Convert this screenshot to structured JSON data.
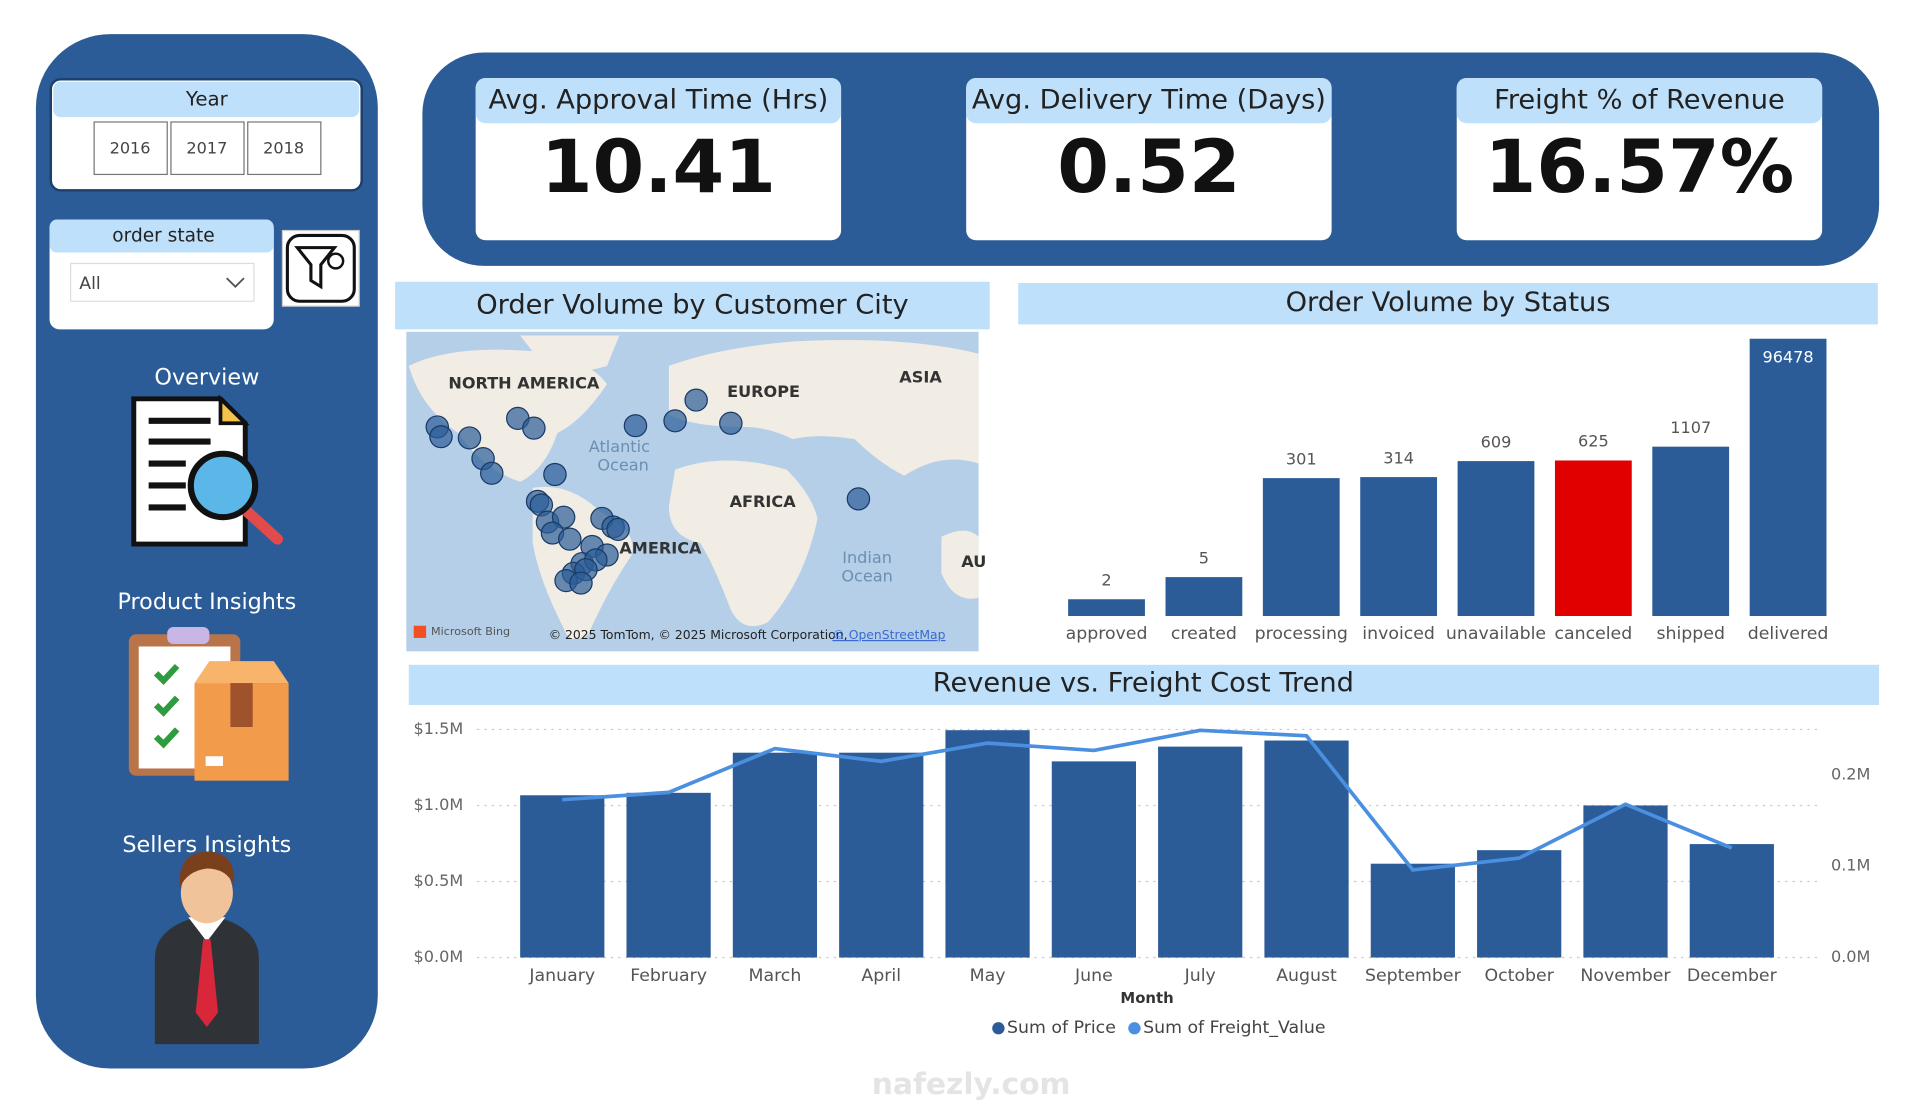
{
  "sidebar": {
    "year_slicer": {
      "title": "Year",
      "options": [
        "2016",
        "2017",
        "2018"
      ]
    },
    "state_slicer": {
      "title": "order state",
      "selected": "All"
    },
    "nav": [
      "Overview",
      "Product Insights",
      "Sellers Insights"
    ]
  },
  "kpis": [
    {
      "title": "Avg. Approval Time (Hrs)",
      "value": "10.41"
    },
    {
      "title": "Avg. Delivery Time (Days)",
      "value": "0.52"
    },
    {
      "title": "Freight % of Revenue",
      "value": "16.57%"
    }
  ],
  "map": {
    "title": "Order Volume by Customer City",
    "labels": [
      "NORTH AMERICA",
      "EUROPE",
      "ASIA",
      "AFRICA",
      "AMERICA",
      "AU"
    ],
    "oceans": [
      [
        "Atlantic",
        "Ocean"
      ],
      [
        "Indian",
        "Ocean"
      ]
    ],
    "logo": "Microsoft Bing",
    "attribution": "© 2025 TomTom, © 2025 Microsoft Corporation,",
    "attribution_link": "© OpenStreetMap"
  },
  "chart_data": [
    {
      "type": "bar",
      "title": "Order Volume by Status",
      "categories": [
        "approved",
        "created",
        "processing",
        "invoiced",
        "unavailable",
        "canceled",
        "shipped",
        "delivered"
      ],
      "values": [
        2,
        5,
        301,
        314,
        609,
        625,
        1107,
        96478
      ],
      "colors": [
        "#2b5c97",
        "#2b5c97",
        "#2b5c97",
        "#2b5c97",
        "#2b5c97",
        "#e00000",
        "#2b5c97",
        "#2b5c97"
      ],
      "log_scale": true,
      "ylim": [
        1,
        100000
      ]
    },
    {
      "type": "combo",
      "title": "Revenue vs. Freight Cost Trend",
      "x_label": "Month",
      "categories": [
        "January",
        "February",
        "March",
        "April",
        "May",
        "June",
        "July",
        "August",
        "September",
        "October",
        "November",
        "December"
      ],
      "series": [
        {
          "name": "Sum of Price",
          "type": "bar",
          "color": "#2b5c97",
          "values": [
            1067000,
            1083000,
            1347000,
            1347000,
            1495000,
            1290000,
            1387000,
            1427000,
            617000,
            706000,
            1000000,
            746000
          ]
        },
        {
          "name": "Sum of Freight_Value",
          "type": "line",
          "axis": "y2",
          "color": "#4a8fe0",
          "values": [
            173000,
            181000,
            229000,
            215000,
            235000,
            227000,
            249000,
            243000,
            96000,
            109000,
            168000,
            120000
          ]
        }
      ],
      "ylim": [
        0,
        1500000
      ],
      "yticks": [
        {
          "value": 0,
          "label": "$0.0M"
        },
        {
          "value": 500000,
          "label": "$0.5M"
        },
        {
          "value": 1000000,
          "label": "$1.0M"
        },
        {
          "value": 1500000,
          "label": "$1.5M"
        }
      ],
      "y2lim": [
        0,
        250000
      ],
      "y2ticks": [
        {
          "value": 0,
          "label": "0.0M"
        },
        {
          "value": 100000,
          "label": "0.1M"
        },
        {
          "value": 200000,
          "label": "0.2M"
        }
      ],
      "grid": true,
      "legend": "bottom"
    }
  ],
  "watermark": "nafezly.com"
}
